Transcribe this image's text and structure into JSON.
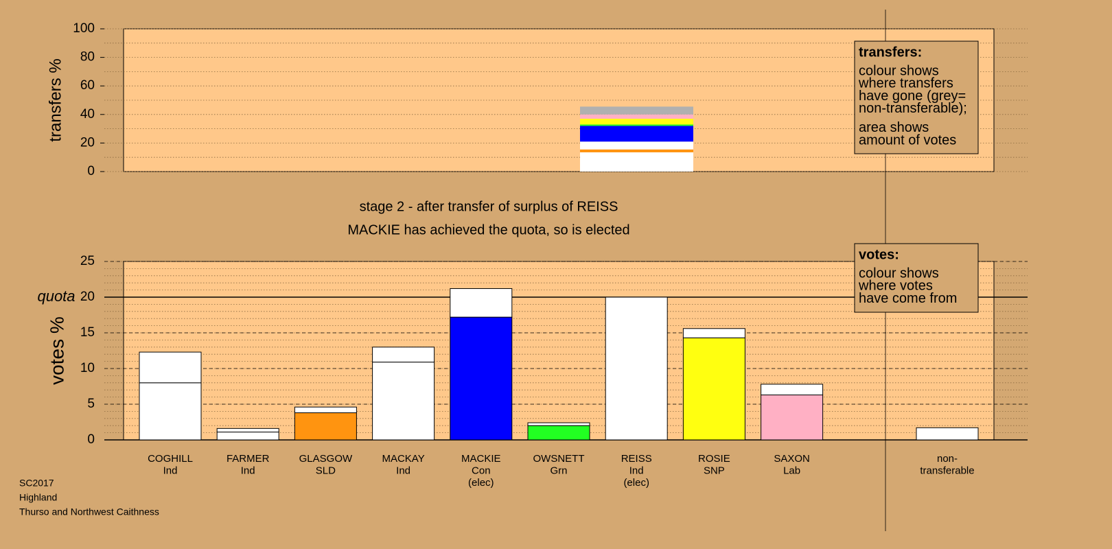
{
  "chart_data": [
    {
      "type": "stacked-bar",
      "ylabel": "transfers %",
      "ylim": [
        0,
        100
      ],
      "yticks": [
        0,
        20,
        40,
        60,
        80,
        100
      ],
      "minor_grid_step": 10,
      "grid": true,
      "bar_position": 6,
      "segments": [
        {
          "color": "#ffffff",
          "value": 12.5
        },
        {
          "color": "#ffffff",
          "value": 1
        },
        {
          "color": "#ff9410",
          "value": 2
        },
        {
          "color": "#ffffff",
          "value": 5.5
        },
        {
          "color": "#0000ff",
          "value": 11
        },
        {
          "color": "#22ff22",
          "value": 1
        },
        {
          "color": "#ffff10",
          "value": 4
        },
        {
          "color": "#ffb0c4",
          "value": 3
        },
        {
          "color": "#b0b0b0",
          "value": 5.5
        }
      ],
      "legend": {
        "heading": "transfers:",
        "paragraphs": [
          [
            "colour shows",
            "where transfers",
            "have gone (grey=",
            "non-transferable);"
          ],
          [
            "area shows",
            "amount of votes"
          ]
        ]
      }
    },
    {
      "type": "stacked-bar",
      "title": [
        "stage 2 - after transfer of surplus of REISS",
        "MACKIE has achieved the quota, so is elected"
      ],
      "ylabel": "votes %",
      "ylim": [
        0,
        25
      ],
      "yticks": [
        0,
        5,
        10,
        15,
        20,
        25
      ],
      "minor_grid_step": 1,
      "grid": true,
      "quota": {
        "value": 20,
        "label": "quota"
      },
      "categories": [
        [
          "COGHILL",
          "Ind"
        ],
        [
          "FARMER",
          "Ind"
        ],
        [
          "GLASGOW",
          "SLD"
        ],
        [
          "MACKAY",
          "Ind"
        ],
        [
          "MACKIE",
          "Con",
          "(elec)"
        ],
        [
          "OWSNETT",
          "Grn"
        ],
        [
          "REISS",
          "Ind",
          "(elec)"
        ],
        [
          "ROSIE",
          "SNP"
        ],
        [
          "SAXON",
          "Lab"
        ],
        null,
        [
          "non-",
          "transferable"
        ]
      ],
      "series": [
        {
          "colors": [
            "#ffffff",
            "#ffffff",
            "#ff9410",
            "#ffffff",
            "#0000ff",
            "#22ff22",
            "#ffffff",
            "#ffff10",
            "#ffb0c4",
            null,
            "#ffffff"
          ],
          "values": [
            8,
            1.1,
            3.8,
            10.9,
            17.2,
            2,
            20,
            14.3,
            6.3,
            null,
            0
          ]
        },
        {
          "color": "#ffffff",
          "values": [
            4.3,
            0.5,
            0.8,
            2.1,
            4,
            0.4,
            0,
            1.3,
            1.5,
            null,
            1.7
          ]
        }
      ],
      "legend": {
        "heading": "votes:",
        "paragraphs": [
          [
            "colour shows",
            "where votes",
            "have come from"
          ]
        ]
      },
      "notes": [
        "SC2017",
        "Highland",
        "Thurso and Northwest Caithness"
      ]
    }
  ]
}
